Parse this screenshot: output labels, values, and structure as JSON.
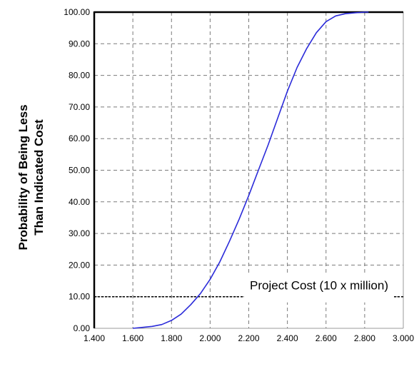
{
  "chart_data": {
    "type": "line",
    "title": "",
    "xlabel": "",
    "ylabel_lines": [
      "Probability of Being Less",
      "Than Indicated Cost"
    ],
    "xlim": [
      1.4,
      3.0
    ],
    "ylim": [
      0,
      100
    ],
    "x_ticks": [
      1.4,
      1.6,
      1.8,
      2.0,
      2.2,
      2.4,
      2.6,
      2.8,
      3.0
    ],
    "x_tick_labels": [
      "1.400",
      "1.600",
      "1.800",
      "2.000",
      "2.200",
      "2.400",
      "2.600",
      "2.800",
      "3.000"
    ],
    "y_ticks": [
      0,
      10,
      20,
      30,
      40,
      50,
      60,
      70,
      80,
      90,
      100
    ],
    "y_tick_labels": [
      "0.00",
      "10.00",
      "20.00",
      "30.00",
      "40.00",
      "50.00",
      "60.00",
      "70.00",
      "80.00",
      "90.00",
      "100.00"
    ],
    "grid": true,
    "series": [
      {
        "color": "#2b2bd9",
        "x": [
          1.6,
          1.65,
          1.7,
          1.75,
          1.8,
          1.85,
          1.9,
          1.95,
          2.0,
          2.05,
          2.1,
          2.15,
          2.2,
          2.25,
          2.3,
          2.35,
          2.4,
          2.45,
          2.5,
          2.55,
          2.6,
          2.65,
          2.7,
          2.75,
          2.8,
          2.82
        ],
        "y": [
          0,
          0.3,
          0.6,
          1.2,
          2.5,
          4.5,
          7.5,
          11.0,
          15.5,
          21.0,
          27.5,
          34.5,
          42.0,
          50.0,
          58.0,
          66.5,
          75.0,
          82.5,
          88.5,
          93.5,
          97.0,
          98.8,
          99.5,
          99.8,
          100,
          100
        ]
      }
    ],
    "annotation": {
      "text": "Project Cost (10 x million)",
      "line_value": 10
    }
  }
}
